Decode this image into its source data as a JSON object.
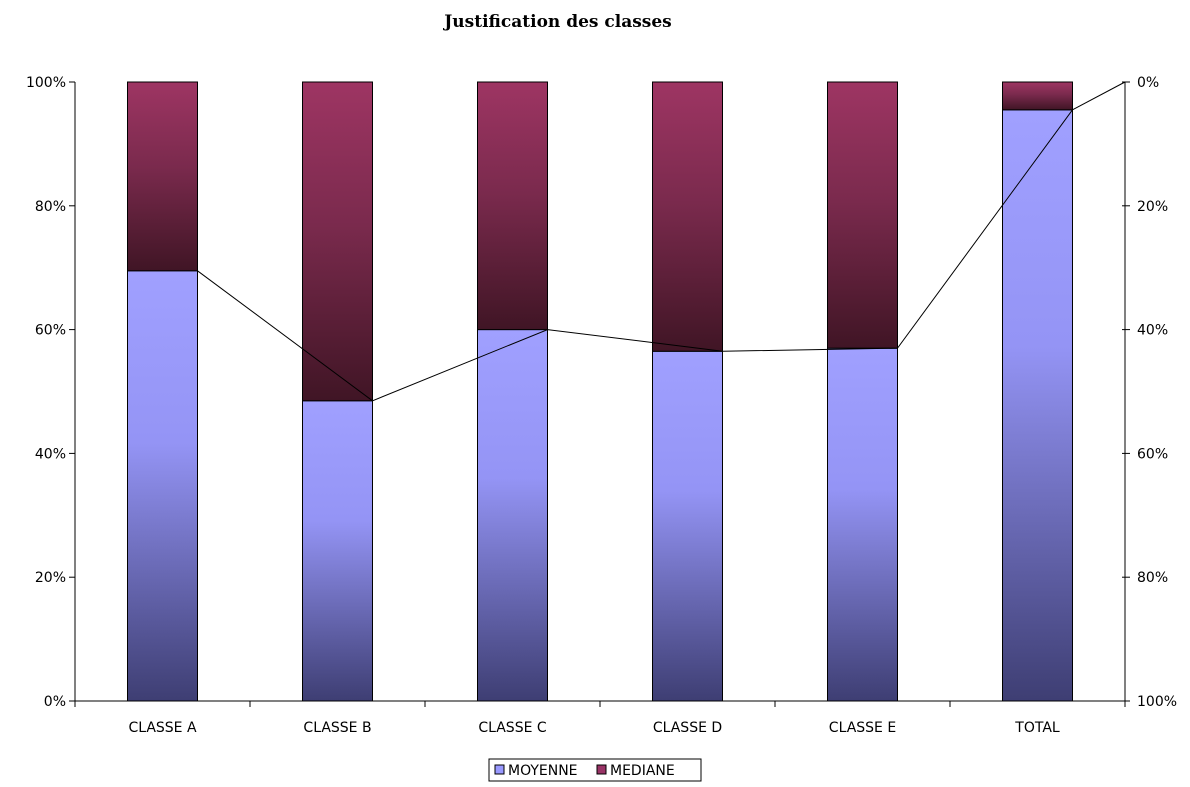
{
  "chart_data": {
    "type": "bar",
    "stacked": true,
    "title": "Justification des classes",
    "xlabel": "",
    "ylabel": "",
    "categories": [
      "CLASSE A",
      "CLASSE B",
      "CLASSE C",
      "CLASSE D",
      "CLASSE E",
      "TOTAL"
    ],
    "series": [
      {
        "name": "MOYENNE",
        "values": [
          69.5,
          48.5,
          60.0,
          56.5,
          57.0,
          95.5
        ],
        "color": "#9999ff"
      },
      {
        "name": "MEDIANE",
        "values": [
          30.5,
          51.5,
          40.0,
          43.5,
          43.0,
          4.5
        ],
        "color": "#993366"
      }
    ],
    "line": {
      "values": [
        30.5,
        51.5,
        40.0,
        43.5,
        43.0,
        4.5
      ],
      "axis": "right",
      "color": "#000000"
    },
    "ylim": [
      0,
      100
    ],
    "y_ticks": [
      "0%",
      "20%",
      "40%",
      "60%",
      "80%",
      "100%"
    ],
    "y2lim": [
      0,
      100
    ],
    "y2_inverted": true,
    "y2_ticks": [
      "0%",
      "20%",
      "40%",
      "60%",
      "80%",
      "100%"
    ],
    "grid": false,
    "legend_position": "bottom"
  }
}
